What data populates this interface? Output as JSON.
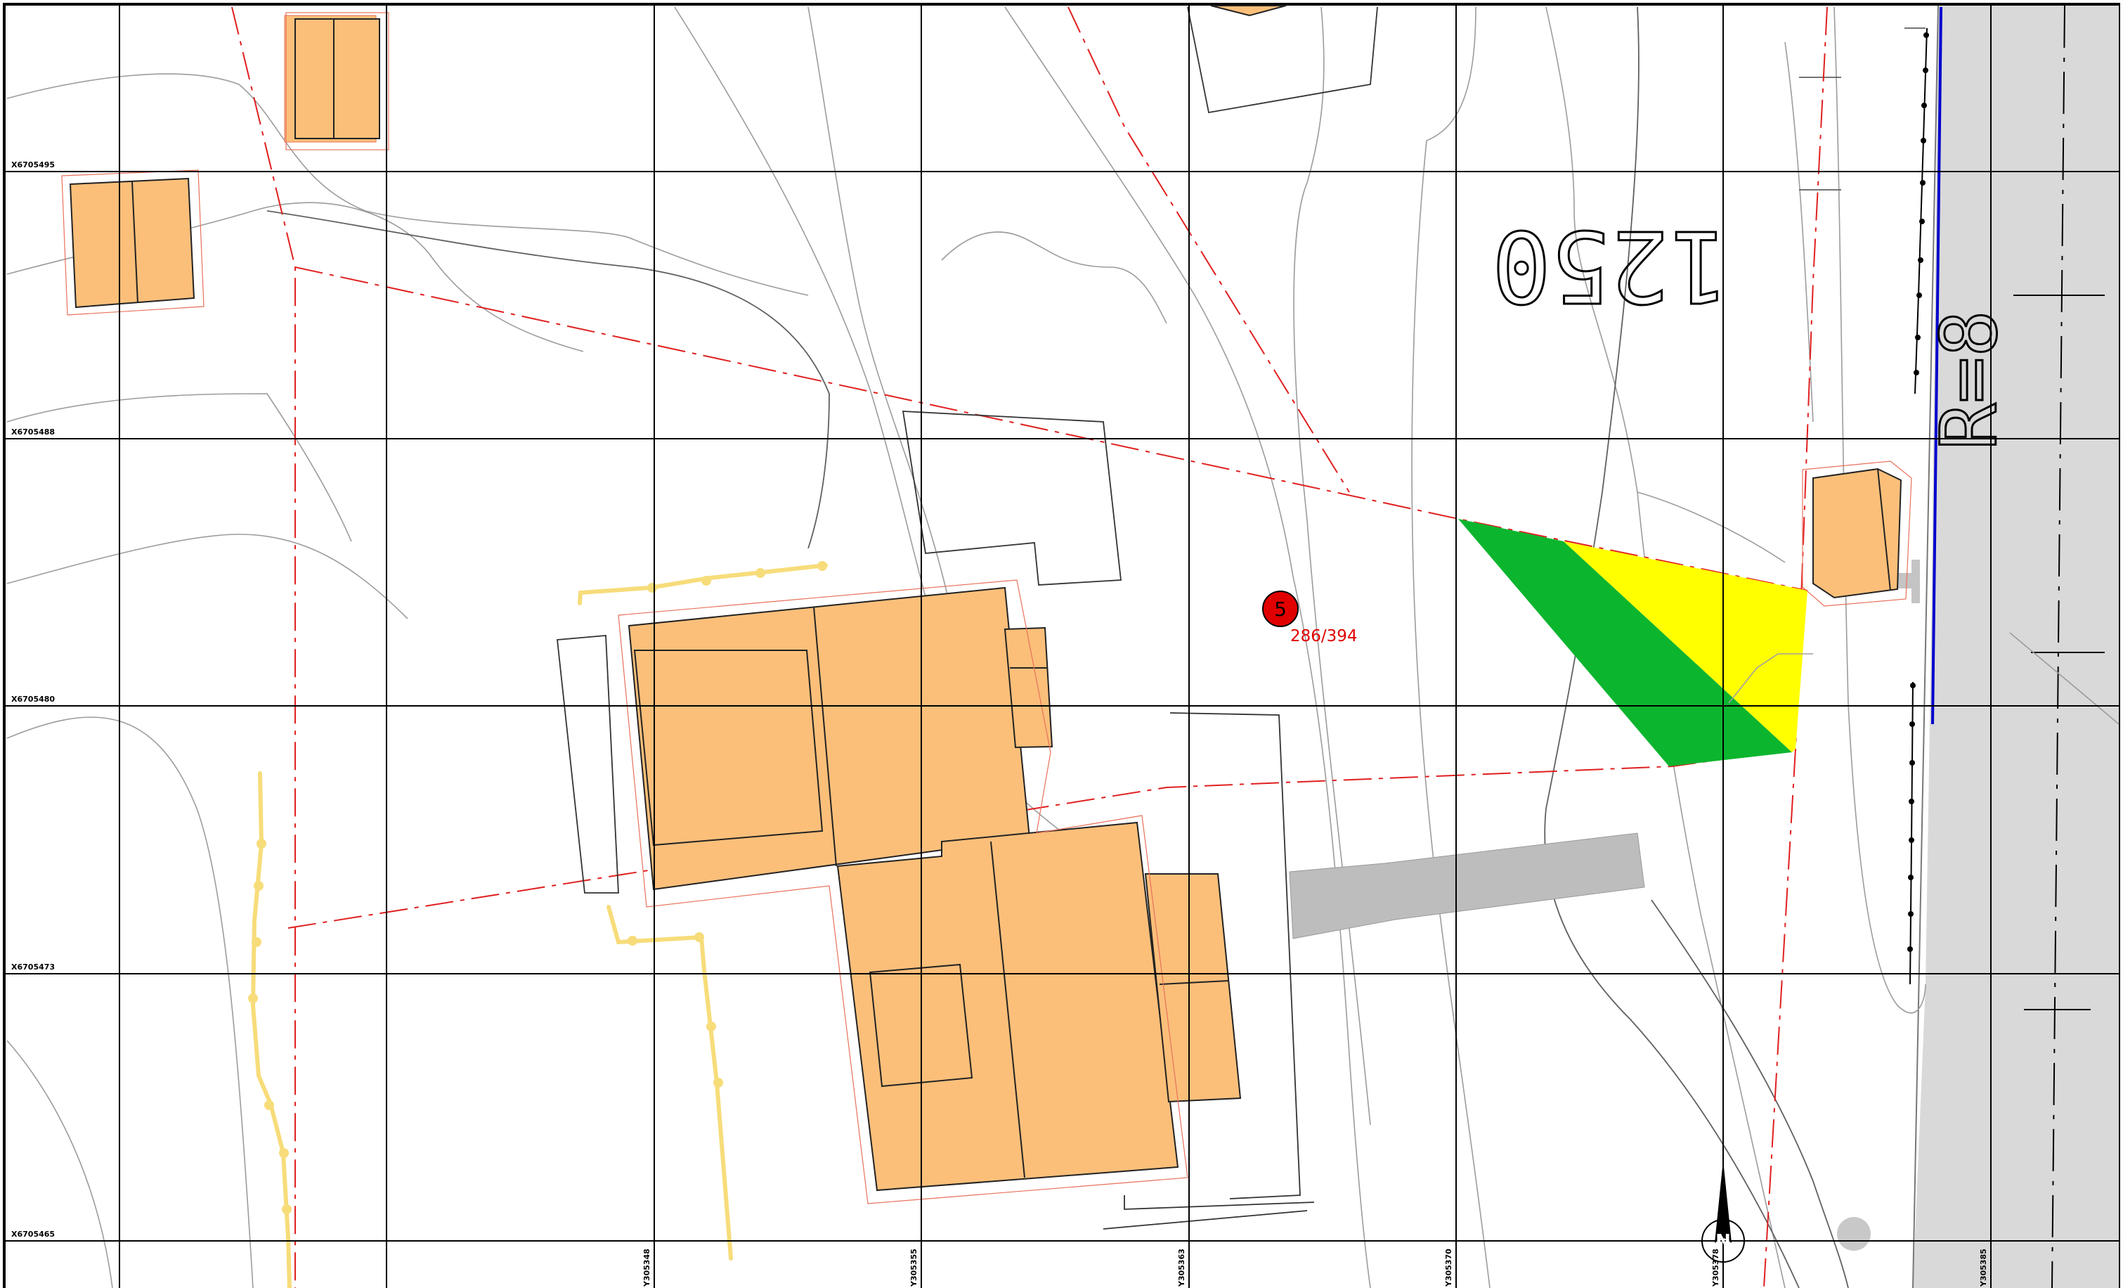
{
  "map": {
    "grid_x_labels": [
      "X6705495",
      "X6705488",
      "X6705480",
      "X6705473",
      "X6705465"
    ],
    "grid_y_labels": [
      "Y305348",
      "Y305355",
      "Y305363",
      "Y305370",
      "Y305378",
      "Y305385"
    ],
    "plot_number": "5",
    "plot_label": "286/394",
    "scale_stamp": "1250",
    "road_label": "R=8",
    "north_symbol": "N"
  },
  "colors": {
    "building": "#fbbf7a",
    "boundary": "#e02020",
    "zone_green": "#0cb52e",
    "zone_yellow": "#ffff00",
    "road_fill": "#d8d8d8",
    "driveway": "#bcbcbc",
    "water_line": "#f7dc7a",
    "road_edge_blue": "#0000cc"
  }
}
